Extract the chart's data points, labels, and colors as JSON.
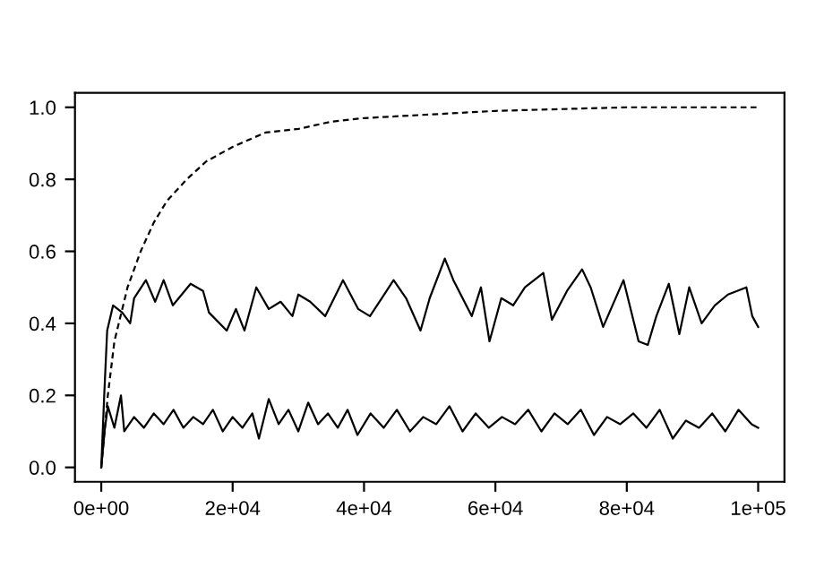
{
  "chart_data": {
    "type": "line",
    "xlim": [
      -4000,
      104000
    ],
    "ylim": [
      -0.04,
      1.04
    ],
    "xticks": [
      {
        "value": 0,
        "label": "0e+00"
      },
      {
        "value": 20000,
        "label": "2e+04"
      },
      {
        "value": 40000,
        "label": "4e+04"
      },
      {
        "value": 60000,
        "label": "6e+04"
      },
      {
        "value": 80000,
        "label": "8e+04"
      },
      {
        "value": 100000,
        "label": "1e+05"
      }
    ],
    "yticks": [
      {
        "value": 0,
        "label": "0.0"
      },
      {
        "value": 0.2,
        "label": "0.2"
      },
      {
        "value": 0.4,
        "label": "0.4"
      },
      {
        "value": 0.6,
        "label": "0.6"
      },
      {
        "value": 0.8,
        "label": "0.8"
      },
      {
        "value": 1,
        "label": "1.0"
      }
    ],
    "grid": false,
    "legend": false,
    "marker": "none",
    "series": [
      {
        "color": "#000000",
        "line_style": "dashed",
        "x": [
          0,
          1000,
          2000,
          4000,
          6000,
          8000,
          10000,
          13000,
          16000,
          20000,
          25000,
          30000,
          35000,
          40000,
          50000,
          60000,
          70000,
          80000,
          100000
        ],
        "values": [
          0,
          0.2,
          0.35,
          0.5,
          0.6,
          0.68,
          0.74,
          0.8,
          0.85,
          0.89,
          0.93,
          0.94,
          0.96,
          0.97,
          0.98,
          0.99,
          0.995,
          1.0,
          1.0
        ]
      },
      {
        "color": "#000000",
        "line_style": "solid",
        "x": [
          0,
          450,
          900,
          1800,
          3200,
          4400,
          5000,
          6800,
          8200,
          9500,
          10900,
          11800,
          13600,
          15500,
          16400,
          19100,
          20500,
          21800,
          23600,
          25500,
          27300,
          29100,
          30000,
          31800,
          34100,
          36800,
          39100,
          40900,
          42700,
          44500,
          46400,
          48600,
          50000,
          52300,
          53600,
          56400,
          57800,
          59100,
          60900,
          62700,
          64500,
          67300,
          68600,
          70900,
          73200,
          74500,
          76400,
          79500,
          81800,
          83200,
          84500,
          86400,
          88000,
          89500,
          91400,
          93400,
          95400,
          98200,
          99100,
          100000
        ],
        "values": [
          0,
          0.2,
          0.38,
          0.45,
          0.43,
          0.4,
          0.47,
          0.52,
          0.46,
          0.52,
          0.45,
          0.47,
          0.51,
          0.49,
          0.43,
          0.38,
          0.44,
          0.38,
          0.5,
          0.44,
          0.46,
          0.42,
          0.48,
          0.46,
          0.42,
          0.52,
          0.44,
          0.42,
          0.47,
          0.52,
          0.47,
          0.38,
          0.47,
          0.58,
          0.52,
          0.42,
          0.5,
          0.35,
          0.47,
          0.45,
          0.5,
          0.54,
          0.41,
          0.49,
          0.55,
          0.5,
          0.39,
          0.52,
          0.35,
          0.34,
          0.42,
          0.51,
          0.37,
          0.5,
          0.4,
          0.45,
          0.48,
          0.5,
          0.42,
          0.39
        ]
      },
      {
        "color": "#000000",
        "line_style": "solid",
        "x": [
          0,
          500,
          1000,
          2000,
          3000,
          3500,
          5000,
          6500,
          8000,
          9500,
          11000,
          12500,
          14000,
          15500,
          17000,
          18500,
          20000,
          21500,
          23000,
          24000,
          25500,
          27000,
          28500,
          30000,
          31500,
          33000,
          34500,
          36000,
          37500,
          39000,
          41000,
          43000,
          45000,
          47000,
          49000,
          51000,
          53000,
          55000,
          57000,
          59000,
          61000,
          63000,
          65000,
          67000,
          69000,
          71000,
          73000,
          75000,
          77000,
          79000,
          81000,
          83000,
          85000,
          87000,
          89000,
          91000,
          93000,
          95000,
          97000,
          99000,
          100000
        ],
        "values": [
          0,
          0.1,
          0.17,
          0.11,
          0.2,
          0.1,
          0.14,
          0.11,
          0.15,
          0.12,
          0.16,
          0.11,
          0.14,
          0.12,
          0.16,
          0.1,
          0.14,
          0.11,
          0.15,
          0.08,
          0.19,
          0.12,
          0.16,
          0.1,
          0.18,
          0.12,
          0.15,
          0.11,
          0.16,
          0.09,
          0.15,
          0.11,
          0.16,
          0.1,
          0.14,
          0.12,
          0.17,
          0.1,
          0.15,
          0.11,
          0.14,
          0.12,
          0.16,
          0.1,
          0.15,
          0.12,
          0.16,
          0.09,
          0.14,
          0.12,
          0.15,
          0.11,
          0.16,
          0.08,
          0.13,
          0.11,
          0.15,
          0.1,
          0.16,
          0.12,
          0.11
        ]
      }
    ]
  }
}
